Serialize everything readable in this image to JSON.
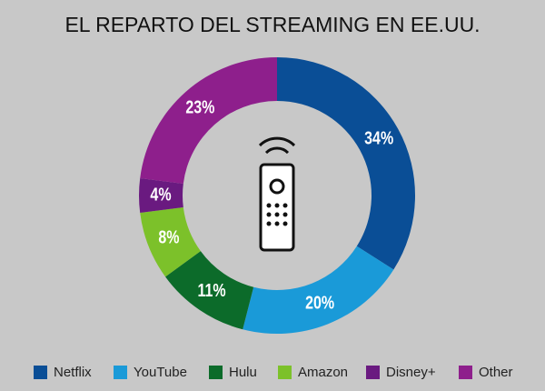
{
  "chart_data": {
    "type": "donut",
    "title": "EL REPARTO DEL STREAMING EN EE.UU.",
    "categories": [
      "Netflix",
      "YouTube",
      "Hulu",
      "Amazon",
      "Disney+",
      "Other"
    ],
    "values": [
      34,
      20,
      11,
      8,
      4,
      23
    ],
    "value_labels": [
      "34%",
      "20%",
      "11%",
      "8%",
      "4%",
      "23%"
    ],
    "colors": [
      "#0a4e96",
      "#1a9ad8",
      "#0c6b2a",
      "#7cc12a",
      "#6a1a80",
      "#8e1f8c"
    ],
    "legend": "bottom"
  }
}
